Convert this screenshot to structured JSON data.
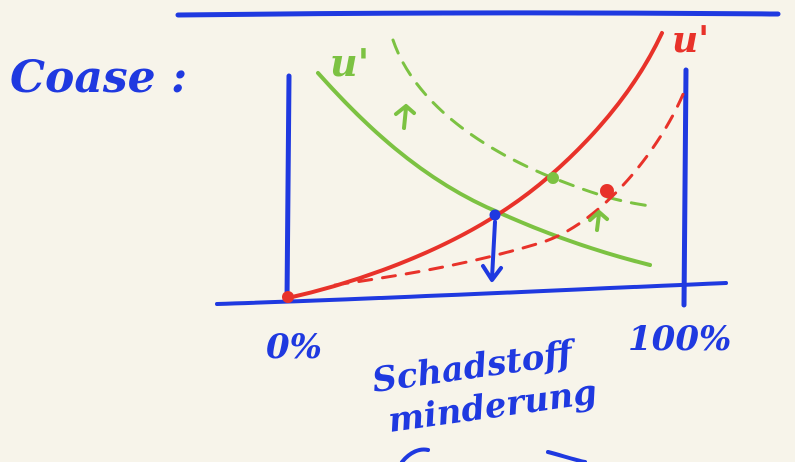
{
  "title": "Coase :",
  "curves": {
    "green_label": "u'",
    "red_label": "u'"
  },
  "axis": {
    "left_tick": "0%",
    "right_tick": "100%",
    "xlabel_line1": "Schadstoff",
    "xlabel_line2": "minderung"
  },
  "colors": {
    "background": "#f7f4ea",
    "blue_ink": "#1f39e0",
    "red_ink": "#e8322a",
    "green_ink": "#7cc242"
  }
}
